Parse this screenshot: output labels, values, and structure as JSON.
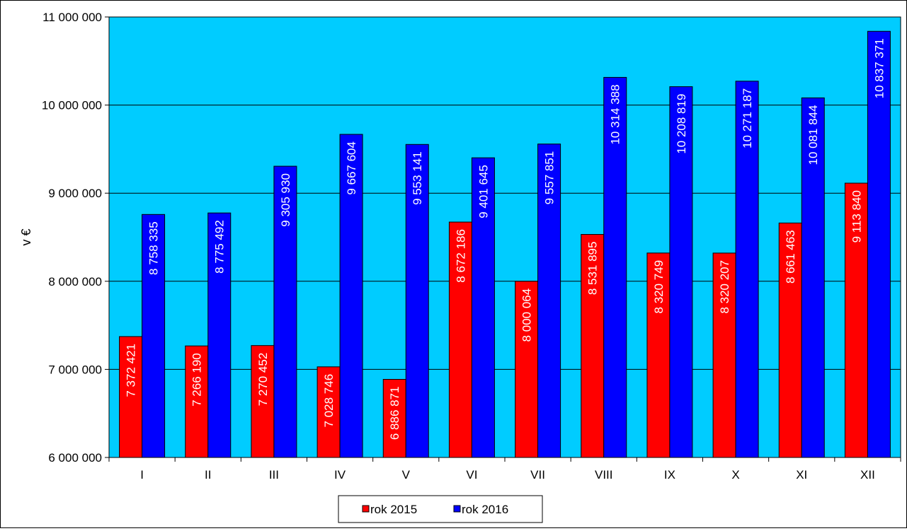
{
  "chart_data": {
    "type": "bar",
    "title": "",
    "xlabel": "",
    "ylabel": "v €",
    "ylim": [
      6000000,
      11000000
    ],
    "yticks": [
      6000000,
      7000000,
      8000000,
      9000000,
      10000000,
      11000000
    ],
    "ytick_labels": [
      "6 000 000",
      "7 000 000",
      "8 000 000",
      "9 000 000",
      "10 000 000",
      "11 000 000"
    ],
    "categories": [
      "I",
      "II",
      "III",
      "IV",
      "V",
      "VI",
      "VII",
      "VIII",
      "IX",
      "X",
      "XI",
      "XII"
    ],
    "series": [
      {
        "name": "rok 2015",
        "color": "#ff0000",
        "values": [
          7372421,
          7266190,
          7270452,
          7028746,
          6886871,
          8672186,
          8000064,
          8531895,
          8320749,
          8320207,
          8661463,
          9113840
        ],
        "labels": [
          "7 372 421",
          "7 266 190",
          "7 270 452",
          "7 028 746",
          "6 886 871",
          "8 672 186",
          "8 000 064",
          "8 531 895",
          "8 320 749",
          "8 320 207",
          "8 661 463",
          "9 113 840"
        ]
      },
      {
        "name": "rok 2016",
        "color": "#0000ff",
        "values": [
          8758335,
          8775492,
          9305930,
          9667604,
          9553141,
          9401645,
          9557851,
          10314388,
          10208819,
          10271187,
          10081844,
          10837371
        ],
        "labels": [
          "8 758 335",
          "8 775 492",
          "9 305 930",
          "9 667 604",
          "9 553 141",
          "9 401 645",
          "9 557 851",
          "10 314 388",
          "10 208 819",
          "10 271 187",
          "10 081 844",
          "10 837 371"
        ]
      }
    ],
    "plot_background": "#00ccff",
    "grid": true,
    "legend_position": "bottom-center"
  }
}
